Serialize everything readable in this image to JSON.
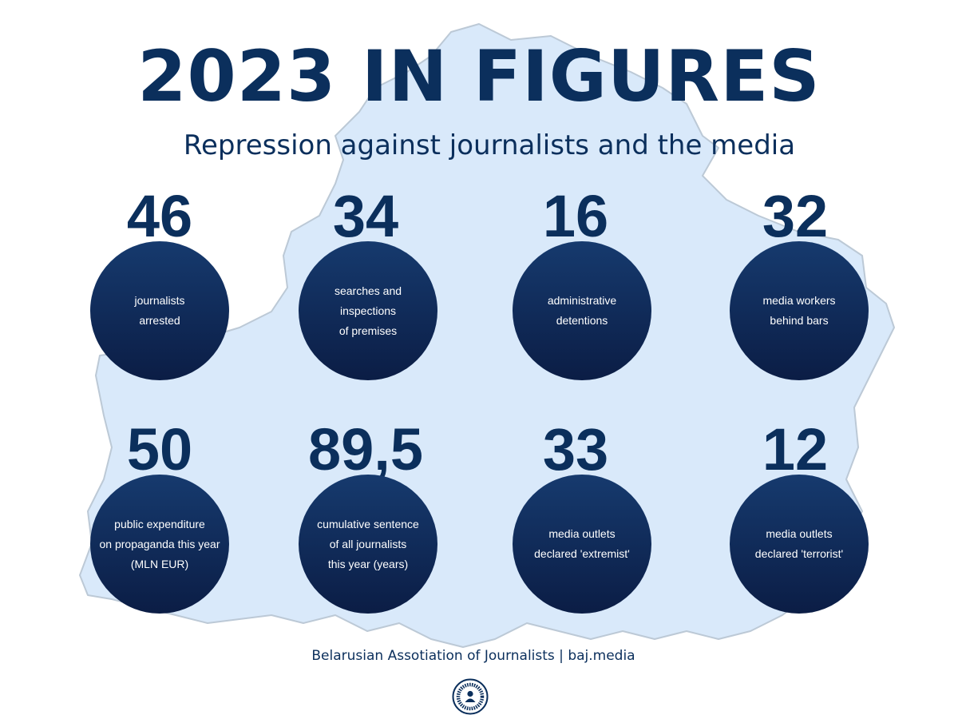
{
  "header": {
    "title": "2023 IN FIGURES",
    "subtitle": "Repression against journalists and the media"
  },
  "stats": [
    {
      "value": "46",
      "label": "journalists\narrested"
    },
    {
      "value": "34",
      "label": "searches and\ninspections\nof premises"
    },
    {
      "value": "16",
      "label": "administrative\ndetentions"
    },
    {
      "value": "32",
      "label": "media workers\nbehind bars"
    },
    {
      "value": "50",
      "label": "public expenditure\non propaganda this year\n(MLN EUR)"
    },
    {
      "value": "89,5",
      "label": "cumulative sentence\nof all journalists\nthis year (years)"
    },
    {
      "value": "33",
      "label": "media outlets\ndeclared 'extremist'"
    },
    {
      "value": "12",
      "label": "media outlets\ndeclared 'terrorist'"
    }
  ],
  "footer": {
    "text": "Belarusian Assotiation of Journalists | baj.media"
  },
  "colors": {
    "primary": "#0b2f5c",
    "circle_top": "#163a6e",
    "circle_bottom": "#0b1d45",
    "map_fill": "#d9e9fa",
    "map_stroke": "#bcc9d6"
  }
}
